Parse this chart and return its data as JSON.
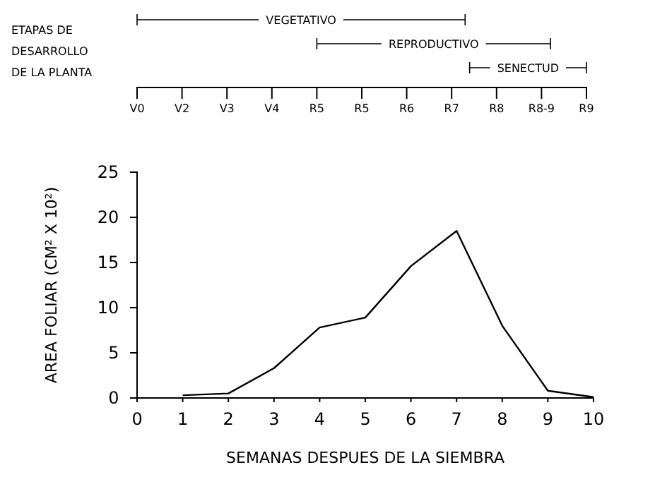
{
  "chart_data": [
    {
      "type": "other",
      "title": "ETAPAS DE DESARROLLO DE LA PLANTA",
      "categories": [
        "V0",
        "V2",
        "V3",
        "V4",
        "R5",
        "R5",
        "R6",
        "R7",
        "R8",
        "R8-9",
        "R9"
      ],
      "annotations": [
        "VEGETATIVO",
        "REPRODUCTIVO",
        "SENECTUD"
      ]
    },
    {
      "type": "line",
      "xlabel": "SEMANAS DESPUES DE LA SIEMBRA",
      "ylabel": "AREA FOLIAR (CM² X 10²)",
      "x": [
        1,
        2,
        3,
        4,
        5,
        6,
        7,
        8,
        9,
        10
      ],
      "series": [
        {
          "color": "#000000",
          "values": [
            0.3,
            0.5,
            3.3,
            7.8,
            8.9,
            14.6,
            18.5,
            8,
            0.8,
            0.1
          ]
        }
      ],
      "xlim": [
        0,
        10
      ],
      "xticks": [
        0,
        1,
        2,
        3,
        4,
        5,
        6,
        7,
        8,
        9,
        10
      ],
      "ylim": [
        0,
        25
      ],
      "yticks": [
        0,
        5,
        10,
        15,
        20,
        25
      ],
      "marker": "none",
      "line_style": "solid"
    }
  ]
}
